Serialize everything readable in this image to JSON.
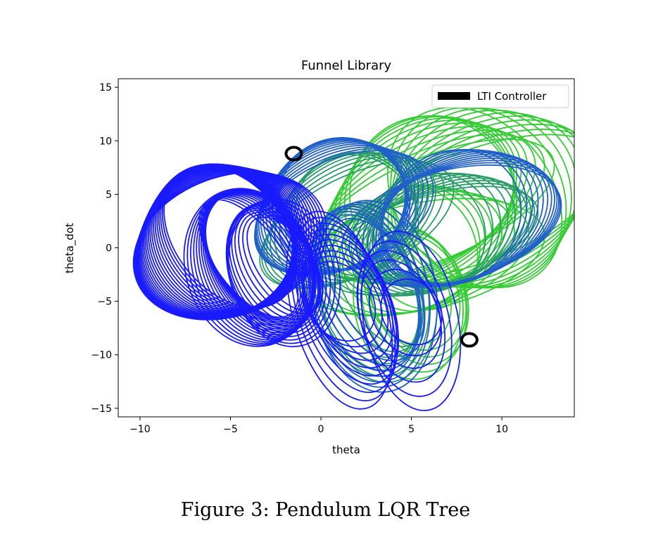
{
  "caption": "Figure 3: Pendulum LQR Tree",
  "chart_data": {
    "type": "line",
    "title": "Funnel Library",
    "xlabel": "theta",
    "ylabel": "theta_dot",
    "xlim": [
      -11.2,
      14.0
    ],
    "ylim": [
      -15.8,
      15.8
    ],
    "xticks": [
      -10,
      -5,
      0,
      5,
      10
    ],
    "xtick_labels": [
      "−10",
      "−5",
      "0",
      "5",
      "10"
    ],
    "yticks": [
      -15,
      -10,
      -5,
      0,
      5,
      10,
      15
    ],
    "ytick_labels": [
      "−15",
      "−10",
      "−5",
      "0",
      "5",
      "10",
      "15"
    ],
    "grid": false,
    "legend": {
      "position": "top-right",
      "entries": [
        {
          "label": "LTI Controller",
          "color": "#000000"
        }
      ]
    },
    "series": [
      {
        "name": "LTI Controller",
        "color": "#000000",
        "x": [
          -1.5,
          8.2
        ],
        "y": [
          8.8,
          -8.6
        ]
      },
      {
        "color": "#33cc33",
        "families": [
          {
            "center": [
              6.2,
              4.0
            ],
            "radii": [
              [
                4.5,
                8.0
              ],
              [
                7.2,
                4.8
              ]
            ],
            "angle": -0.75,
            "count": 10
          },
          {
            "center": [
              8.5,
              4.2
            ],
            "radii": [
              [
                4.2,
                9.3
              ],
              [
                7.6,
                5.2
              ]
            ],
            "angle": -0.72,
            "count": 10
          },
          {
            "center": [
              5.5,
              -0.5
            ],
            "radii": [
              [
                3.0,
                6.0
              ],
              [
                7.0,
                5.0
              ]
            ],
            "angle": -0.55,
            "count": 8
          },
          {
            "center": [
              4.8,
              -4.8
            ],
            "radii": [
              [
                2.2,
                5.0
              ],
              [
                3.0,
                7.2
              ]
            ],
            "angle": -0.5,
            "count": 6
          }
        ]
      },
      {
        "color": "#2a9c6a",
        "families": [
          {
            "center": [
              2.0,
              2.5
            ],
            "radii": [
              [
                3.2,
                6.0
              ],
              [
                5.8,
                4.6
              ]
            ],
            "angle": -0.8,
            "count": 10
          },
          {
            "center": [
              6.0,
              1.0
            ],
            "radii": [
              [
                3.0,
                5.5
              ],
              [
                6.2,
                4.2
              ]
            ],
            "angle": -0.65,
            "count": 10
          },
          {
            "center": [
              3.2,
              -3.8
            ],
            "radii": [
              [
                2.0,
                6.5
              ],
              [
                3.2,
                8.5
              ]
            ],
            "angle": -0.5,
            "count": 7
          }
        ]
      },
      {
        "color": "#2060c8",
        "families": [
          {
            "center": [
              1.3,
              3.6
            ],
            "radii": [
              [
                3.5,
                6.3
              ],
              [
                5.2,
                5.1
              ]
            ],
            "angle": -0.75,
            "count": 14
          },
          {
            "center": [
              7.2,
              2.4
            ],
            "radii": [
              [
                4.0,
                6.0
              ],
              [
                6.2,
                5.2
              ]
            ],
            "angle": -0.6,
            "count": 12
          },
          {
            "center": [
              3.0,
              -4.2
            ],
            "radii": [
              [
                2.2,
                7.0
              ],
              [
                3.4,
                9.0
              ]
            ],
            "angle": -0.48,
            "count": 8
          }
        ]
      },
      {
        "color": "#1a1aff",
        "families": [
          {
            "center": [
              -5.0,
              0.5
            ],
            "radii": [
              [
                3.0,
                7.5
              ],
              [
                5.5,
                6.5
              ]
            ],
            "angle": -0.7,
            "count": 26
          },
          {
            "center": [
              -4.0,
              -1.5
            ],
            "radii": [
              [
                1.8,
                6.5
              ],
              [
                3.5,
                7.5
              ]
            ],
            "angle": -0.65,
            "count": 18
          },
          {
            "center": [
              -2.0,
              -2.0
            ],
            "radii": [
              [
                1.5,
                5.0
              ],
              [
                3.0,
                7.0
              ]
            ],
            "angle": -0.6,
            "count": 12
          },
          {
            "center": [
              1.0,
              -5.5
            ],
            "radii": [
              [
                1.8,
                4.0
              ],
              [
                2.6,
                9.5
              ]
            ],
            "angle": -0.62,
            "count": 10
          },
          {
            "center": [
              5.0,
              -6.5
            ],
            "radii": [
              [
                1.6,
                3.2
              ],
              [
                2.6,
                8.5
              ]
            ],
            "angle": -0.55,
            "count": 6
          }
        ]
      }
    ]
  }
}
